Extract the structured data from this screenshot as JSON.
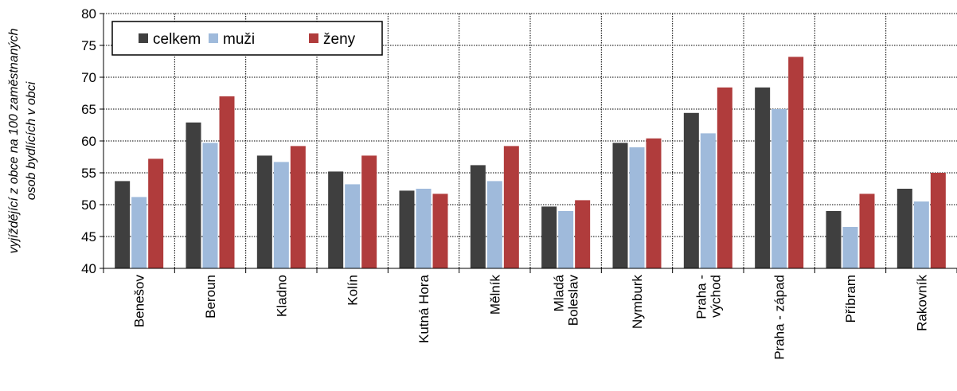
{
  "chart_data": {
    "type": "bar",
    "ylabel": "vyjíždějící z obce na 100 zaměstnaných osob bydlících v obci",
    "ylabel_lines": [
      "vyjíždějící z obce na 100 zaměstnaných",
      "osob bydlících v obci"
    ],
    "ylim": [
      40,
      80
    ],
    "yticks": [
      40,
      45,
      50,
      55,
      60,
      65,
      70,
      75,
      80
    ],
    "grid": true,
    "legend_position": "top-left",
    "categories": [
      "Benešov",
      "Beroun",
      "Kladno",
      "Kolín",
      "Kutná Hora",
      "Mělník",
      "Mladá Boleslav",
      "Nymburk",
      "Praha - východ",
      "Praha - západ",
      "Příbram",
      "Rakovník"
    ],
    "category_label_lines": [
      [
        "Benešov"
      ],
      [
        "Beroun"
      ],
      [
        "Kladno"
      ],
      [
        "Kolín"
      ],
      [
        "Kutná Hora"
      ],
      [
        "Mělník"
      ],
      [
        "Mladá",
        "Boleslav"
      ],
      [
        "Nymburk"
      ],
      [
        "Praha -",
        "východ"
      ],
      [
        "Praha - západ"
      ],
      [
        "Příbram"
      ],
      [
        "Rakovník"
      ]
    ],
    "series": [
      {
        "name": "celkem",
        "color": "#3f3f3f",
        "values": [
          53.7,
          62.9,
          57.7,
          55.2,
          52.2,
          56.2,
          49.7,
          59.7,
          64.4,
          68.4,
          49.0,
          52.5
        ]
      },
      {
        "name": "muži",
        "color": "#9fbadb",
        "values": [
          51.2,
          59.7,
          56.7,
          53.2,
          52.5,
          53.7,
          49.0,
          59.0,
          61.2,
          65.0,
          46.5,
          50.5
        ]
      },
      {
        "name": "ženy",
        "color": "#b03c3c",
        "values": [
          57.2,
          67.0,
          59.2,
          57.7,
          51.7,
          59.2,
          50.7,
          60.4,
          68.4,
          73.2,
          51.7,
          55.0
        ]
      }
    ]
  }
}
